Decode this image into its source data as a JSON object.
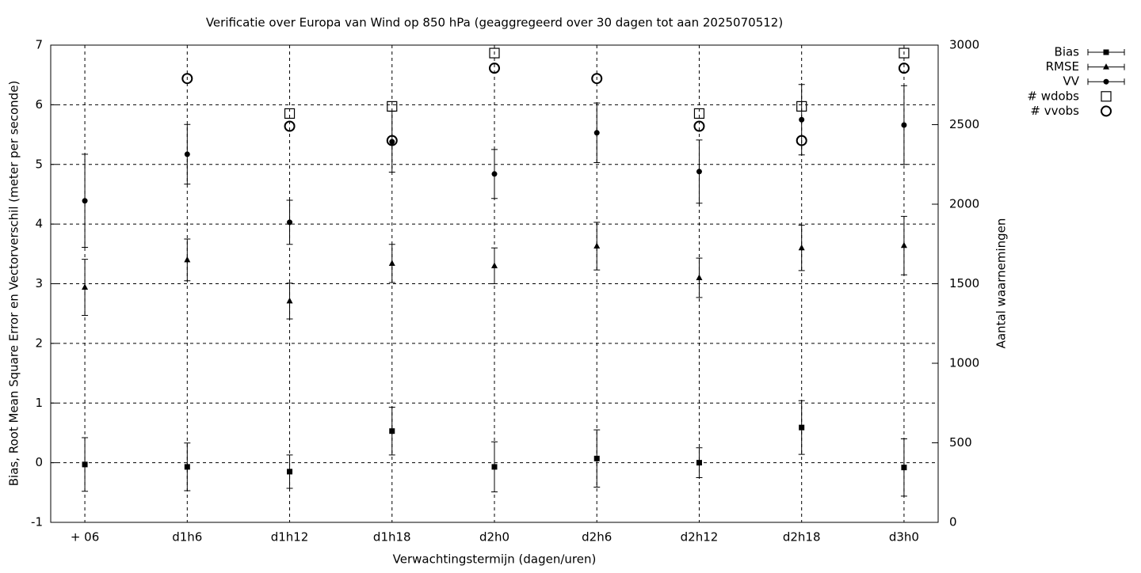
{
  "chart_data": {
    "type": "errorbar",
    "title": "Verificatie over Europa van Wind op 850 hPa (geaggregeerd over 30 dagen tot aan 2025070512)",
    "x_label": "Verwachtingstermijn (dagen/uren)",
    "y_label": "Bias, Root Mean Square Error en Vectorverschil (meter per seconde)",
    "y2_label": "Aantal waarnemingen",
    "categories": [
      "+ 06",
      "d1h6",
      "d1h12",
      "d1h18",
      "d2h0",
      "d2h6",
      "d2h12",
      "d2h18",
      "d3h0"
    ],
    "ylim": [
      -1,
      7
    ],
    "yticks": [
      -1,
      0,
      1,
      2,
      3,
      4,
      5,
      6,
      7
    ],
    "y2lim": [
      0,
      3000
    ],
    "y2ticks": [
      0,
      500,
      1000,
      1500,
      2000,
      2500,
      3000
    ],
    "grid": true,
    "legend": "top-right",
    "series": [
      {
        "name": "Bias",
        "marker": "square",
        "color": "#000000",
        "values": [
          -0.03,
          -0.07,
          -0.15,
          0.53,
          -0.07,
          0.07,
          0.0,
          0.59,
          -0.08
        ],
        "errors": [
          0.45,
          0.4,
          0.28,
          0.4,
          0.42,
          0.48,
          0.25,
          0.45,
          0.48
        ]
      },
      {
        "name": "RMSE",
        "marker": "triangle",
        "color": "#000000",
        "values": [
          2.94,
          3.4,
          2.71,
          3.34,
          3.3,
          3.63,
          3.1,
          3.6,
          3.64
        ],
        "errors": [
          0.47,
          0.35,
          0.3,
          0.32,
          0.3,
          0.4,
          0.33,
          0.38,
          0.49
        ]
      },
      {
        "name": "VV",
        "marker": "circle",
        "color": "#000000",
        "values": [
          4.39,
          5.17,
          4.03,
          5.38,
          4.84,
          5.53,
          4.88,
          5.75,
          5.66
        ],
        "errors": [
          0.78,
          0.5,
          0.37,
          0.51,
          0.41,
          0.5,
          0.53,
          0.59,
          0.66
        ]
      },
      {
        "name": "# wdobs",
        "marker": "open-square",
        "color": "#000000",
        "axis": "y2",
        "values": [
          null,
          null,
          2570,
          2615,
          2950,
          null,
          2570,
          2615,
          2950
        ]
      },
      {
        "name": "# vvobs",
        "marker": "open-circle",
        "color": "#000000",
        "axis": "y2",
        "values": [
          null,
          2790,
          2490,
          2400,
          2855,
          2790,
          2490,
          2400,
          2855
        ]
      }
    ]
  }
}
